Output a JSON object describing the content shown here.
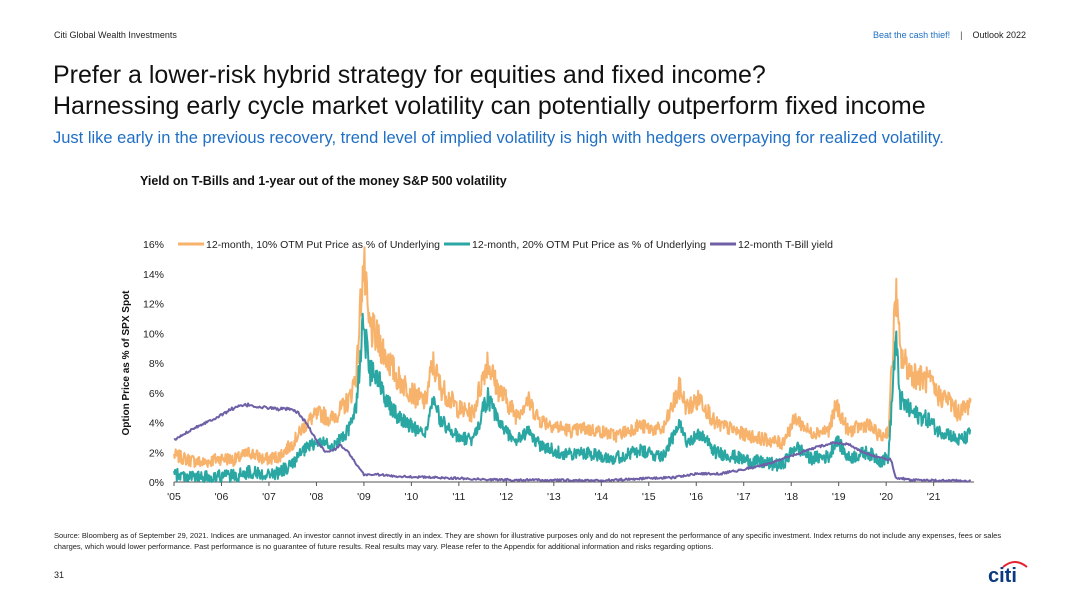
{
  "header": {
    "brand": "Citi Global Wealth Investments",
    "link": "Beat the cash thief!",
    "separator": "|",
    "report": "Outlook 2022"
  },
  "title_line1": "Prefer a lower-risk hybrid strategy for equities and fixed income?",
  "title_line2": "Harnessing early cycle market volatility can potentially outperform fixed income",
  "subtitle": "Just like early in the previous recovery, trend level of implied volatility is high with hedgers overpaying for realized volatility.",
  "footnote": "Source: Bloomberg as of September 29, 2021. Indices are unmanaged. An investor cannot invest directly in an index. They are shown for illustrative purposes only and do not represent the performance of any specific investment. Index returns do not include any expenses, fees or sales charges, which would lower performance. Past performance is no guarantee of future results. Real results may vary. Please refer to the Appendix for additional information and risks regarding options.",
  "page_number": "31",
  "logo_text": "citi",
  "colors": {
    "orange": "#f7b26b",
    "teal": "#2aa7a3",
    "purple": "#6e5fa6",
    "accent_blue": "#1f6fc5",
    "logo_red": "#e3222b"
  },
  "chart_data": {
    "type": "line",
    "title": "Yield on T-Bills and 1-year out of the money S&P 500 volatility",
    "ylabel": "Option Price as % of SPX Spot",
    "xlabel": "",
    "ylim": [
      0,
      16
    ],
    "yticks": [
      "0%",
      "2%",
      "4%",
      "6%",
      "8%",
      "10%",
      "12%",
      "14%",
      "16%"
    ],
    "xticks": [
      "'05",
      "'06",
      "'07",
      "'08",
      "'09",
      "'10",
      "'11",
      "'12",
      "'13",
      "'14",
      "'15",
      "'16",
      "'17",
      "'18",
      "'19",
      "'20",
      "'21"
    ],
    "legend_position": "top",
    "grid": false,
    "series": [
      {
        "name": "12-month, 10% OTM Put Price as % of Underlying",
        "color": "#f7b26b",
        "points": [
          [
            2005.0,
            1.8
          ],
          [
            2005.3,
            1.5
          ],
          [
            2005.6,
            1.3
          ],
          [
            2006.0,
            1.6
          ],
          [
            2006.3,
            1.5
          ],
          [
            2006.6,
            2.0
          ],
          [
            2006.9,
            1.5
          ],
          [
            2007.2,
            1.7
          ],
          [
            2007.5,
            2.6
          ],
          [
            2007.7,
            3.6
          ],
          [
            2007.9,
            4.3
          ],
          [
            2008.1,
            4.6
          ],
          [
            2008.3,
            4.2
          ],
          [
            2008.5,
            4.8
          ],
          [
            2008.7,
            5.6
          ],
          [
            2008.85,
            7.5
          ],
          [
            2008.95,
            13.2
          ],
          [
            2009.0,
            14.5
          ],
          [
            2009.1,
            10.5
          ],
          [
            2009.3,
            9.5
          ],
          [
            2009.5,
            8.3
          ],
          [
            2009.7,
            7.0
          ],
          [
            2009.9,
            6.4
          ],
          [
            2010.1,
            5.7
          ],
          [
            2010.3,
            5.4
          ],
          [
            2010.45,
            8.0
          ],
          [
            2010.6,
            6.5
          ],
          [
            2010.8,
            5.6
          ],
          [
            2011.0,
            4.9
          ],
          [
            2011.3,
            4.6
          ],
          [
            2011.6,
            8.2
          ],
          [
            2011.8,
            6.4
          ],
          [
            2012.0,
            5.5
          ],
          [
            2012.2,
            4.5
          ],
          [
            2012.45,
            5.5
          ],
          [
            2012.7,
            4.2
          ],
          [
            2013.0,
            3.8
          ],
          [
            2013.4,
            3.4
          ],
          [
            2013.6,
            3.6
          ],
          [
            2014.0,
            3.4
          ],
          [
            2014.3,
            3.1
          ],
          [
            2014.8,
            3.8
          ],
          [
            2015.0,
            3.6
          ],
          [
            2015.3,
            3.5
          ],
          [
            2015.65,
            6.3
          ],
          [
            2015.8,
            5.0
          ],
          [
            2016.1,
            5.6
          ],
          [
            2016.4,
            3.9
          ],
          [
            2016.7,
            3.6
          ],
          [
            2017.0,
            3.2
          ],
          [
            2017.4,
            2.9
          ],
          [
            2017.8,
            2.6
          ],
          [
            2018.1,
            4.3
          ],
          [
            2018.4,
            3.3
          ],
          [
            2018.8,
            3.5
          ],
          [
            2018.95,
            5.2
          ],
          [
            2019.2,
            3.4
          ],
          [
            2019.6,
            3.9
          ],
          [
            2019.9,
            3.0
          ],
          [
            2020.05,
            3.5
          ],
          [
            2020.15,
            9.5
          ],
          [
            2020.2,
            12.8
          ],
          [
            2020.3,
            8.5
          ],
          [
            2020.5,
            7.5
          ],
          [
            2020.7,
            7.0
          ],
          [
            2020.9,
            6.8
          ],
          [
            2021.1,
            5.8
          ],
          [
            2021.3,
            5.6
          ],
          [
            2021.5,
            4.7
          ],
          [
            2021.7,
            5.0
          ],
          [
            2021.78,
            5.6
          ]
        ]
      },
      {
        "name": "12-month, 20% OTM Put Price as % of Underlying",
        "color": "#2aa7a3",
        "points": [
          [
            2005.0,
            0.5
          ],
          [
            2005.3,
            0.4
          ],
          [
            2005.6,
            0.3
          ],
          [
            2006.0,
            0.4
          ],
          [
            2006.3,
            0.4
          ],
          [
            2006.6,
            0.7
          ],
          [
            2006.9,
            0.5
          ],
          [
            2007.2,
            0.6
          ],
          [
            2007.5,
            1.2
          ],
          [
            2007.7,
            2.0
          ],
          [
            2007.9,
            2.5
          ],
          [
            2008.1,
            2.7
          ],
          [
            2008.3,
            2.4
          ],
          [
            2008.5,
            2.8
          ],
          [
            2008.7,
            3.6
          ],
          [
            2008.85,
            5.5
          ],
          [
            2008.95,
            9.8
          ],
          [
            2009.0,
            10.7
          ],
          [
            2009.1,
            7.5
          ],
          [
            2009.3,
            6.8
          ],
          [
            2009.5,
            5.5
          ],
          [
            2009.7,
            4.5
          ],
          [
            2009.9,
            4.0
          ],
          [
            2010.1,
            3.5
          ],
          [
            2010.3,
            3.3
          ],
          [
            2010.45,
            5.5
          ],
          [
            2010.6,
            4.2
          ],
          [
            2010.8,
            3.5
          ],
          [
            2011.0,
            3.0
          ],
          [
            2011.3,
            2.8
          ],
          [
            2011.6,
            5.7
          ],
          [
            2011.8,
            4.2
          ],
          [
            2012.0,
            3.4
          ],
          [
            2012.2,
            2.7
          ],
          [
            2012.45,
            3.4
          ],
          [
            2012.7,
            2.5
          ],
          [
            2013.0,
            2.1
          ],
          [
            2013.4,
            1.8
          ],
          [
            2013.6,
            2.0
          ],
          [
            2014.0,
            1.8
          ],
          [
            2014.3,
            1.6
          ],
          [
            2014.8,
            2.1
          ],
          [
            2015.0,
            1.9
          ],
          [
            2015.3,
            1.8
          ],
          [
            2015.65,
            3.8
          ],
          [
            2015.8,
            2.8
          ],
          [
            2016.1,
            3.2
          ],
          [
            2016.4,
            2.0
          ],
          [
            2016.7,
            1.8
          ],
          [
            2017.0,
            1.5
          ],
          [
            2017.4,
            1.3
          ],
          [
            2017.8,
            1.1
          ],
          [
            2018.1,
            2.4
          ],
          [
            2018.4,
            1.6
          ],
          [
            2018.8,
            1.7
          ],
          [
            2018.95,
            2.9
          ],
          [
            2019.2,
            1.6
          ],
          [
            2019.6,
            2.0
          ],
          [
            2019.9,
            1.4
          ],
          [
            2020.05,
            1.7
          ],
          [
            2020.15,
            7.0
          ],
          [
            2020.2,
            9.6
          ],
          [
            2020.3,
            5.5
          ],
          [
            2020.5,
            4.8
          ],
          [
            2020.7,
            4.4
          ],
          [
            2020.9,
            4.2
          ],
          [
            2021.1,
            3.4
          ],
          [
            2021.3,
            3.3
          ],
          [
            2021.5,
            2.8
          ],
          [
            2021.7,
            3.0
          ],
          [
            2021.78,
            3.5
          ]
        ]
      },
      {
        "name": "12-month T-Bill yield",
        "color": "#6e5fa6",
        "points": [
          [
            2005.0,
            2.8
          ],
          [
            2005.2,
            3.2
          ],
          [
            2005.4,
            3.6
          ],
          [
            2005.6,
            3.9
          ],
          [
            2005.8,
            4.2
          ],
          [
            2006.0,
            4.5
          ],
          [
            2006.2,
            4.9
          ],
          [
            2006.4,
            5.1
          ],
          [
            2006.6,
            5.2
          ],
          [
            2006.8,
            5.0
          ],
          [
            2007.0,
            5.0
          ],
          [
            2007.2,
            4.9
          ],
          [
            2007.4,
            4.9
          ],
          [
            2007.6,
            4.7
          ],
          [
            2007.8,
            3.9
          ],
          [
            2008.0,
            2.8
          ],
          [
            2008.2,
            2.0
          ],
          [
            2008.4,
            2.2
          ],
          [
            2008.5,
            2.5
          ],
          [
            2008.7,
            1.9
          ],
          [
            2008.85,
            1.1
          ],
          [
            2009.0,
            0.5
          ],
          [
            2009.3,
            0.5
          ],
          [
            2009.6,
            0.4
          ],
          [
            2010.0,
            0.35
          ],
          [
            2010.5,
            0.3
          ],
          [
            2011.0,
            0.25
          ],
          [
            2011.5,
            0.18
          ],
          [
            2012.0,
            0.15
          ],
          [
            2013.0,
            0.12
          ],
          [
            2014.0,
            0.1
          ],
          [
            2015.0,
            0.25
          ],
          [
            2015.5,
            0.3
          ],
          [
            2016.0,
            0.55
          ],
          [
            2016.5,
            0.55
          ],
          [
            2017.0,
            0.85
          ],
          [
            2017.5,
            1.2
          ],
          [
            2018.0,
            1.75
          ],
          [
            2018.5,
            2.3
          ],
          [
            2018.9,
            2.65
          ],
          [
            2019.2,
            2.55
          ],
          [
            2019.5,
            2.0
          ],
          [
            2019.9,
            1.6
          ],
          [
            2020.1,
            1.5
          ],
          [
            2020.2,
            0.3
          ],
          [
            2020.5,
            0.15
          ],
          [
            2021.0,
            0.1
          ],
          [
            2021.78,
            0.08
          ]
        ]
      }
    ]
  }
}
